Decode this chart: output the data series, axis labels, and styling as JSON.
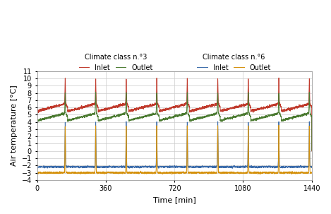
{
  "title_left": "Climate class n.°3",
  "title_right": "Climate class n.°6",
  "xlabel": "Time [min]",
  "ylabel": "Air temperature [°C]",
  "xlim": [
    0,
    1440
  ],
  "ylim": [
    -4,
    11
  ],
  "yticks": [
    -4,
    -3,
    -2,
    -1,
    0,
    1,
    2,
    3,
    4,
    5,
    6,
    7,
    8,
    9,
    10,
    11
  ],
  "xticks": [
    0,
    360,
    720,
    1080,
    1440
  ],
  "colors": {
    "cc3_inlet": "#c0392b",
    "cc3_outlet": "#4a7a30",
    "cc6_inlet": "#3a6baa",
    "cc6_outlet": "#d4900a"
  },
  "n_cycles": 9,
  "total_time": 1440,
  "cc3_inlet_base_start": 5.5,
  "cc3_inlet_base_end": 6.5,
  "cc3_outlet_base_start": 4.2,
  "cc3_outlet_base_end": 5.2,
  "cc6_inlet_base": -2.2,
  "cc6_outlet_base": -3.0,
  "cc3_inlet_peak": 10.0,
  "cc3_outlet_peak": 8.0,
  "cc6_inlet_peak": 4.0,
  "cc6_outlet_peak": 3.5,
  "grid_color": "#cccccc",
  "bg_color": "#ffffff"
}
